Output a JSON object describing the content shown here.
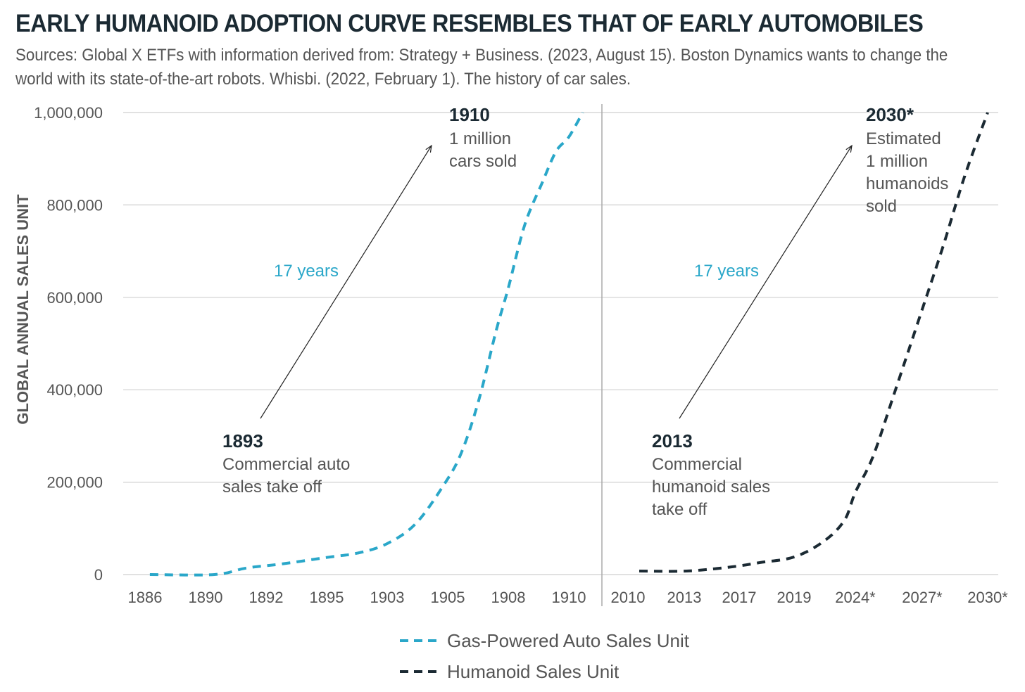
{
  "chart_data": {
    "type": "line",
    "title": "EARLY HUMANOID ADOPTION CURVE RESEMBLES THAT OF EARLY AUTOMOBILES",
    "subtitle": "Sources: Global X ETFs with information derived from: Strategy + Business. (2023, August 15). Boston Dynamics wants to change the world with its state-of-the-art robots. Whisbi. (2022, February 1). The history of car sales.",
    "ylabel": "GLOBAL ANNUAL SALES UNIT",
    "ylim": [
      0,
      1000000
    ],
    "yticks": [
      0,
      200000,
      400000,
      600000,
      800000,
      1000000
    ],
    "ytick_labels": [
      "0",
      "200,000",
      "400,000",
      "600,000",
      "800,000",
      "1,000,000"
    ],
    "grid": true,
    "legend_position": "bottom-center",
    "panels": [
      {
        "categories": [
          "1886",
          "1890",
          "1892",
          "1895",
          "1903",
          "1905",
          "1908",
          "1910"
        ],
        "series": {
          "name": "Gas-Powered Auto Sales Unit",
          "color": "#2aa7c9",
          "points": [
            [
              0.08,
              0
            ],
            [
              1.15,
              0
            ],
            [
              1.67,
              14000
            ],
            [
              2.26,
              23000
            ],
            [
              3,
              37000
            ],
            [
              3.53,
              47000
            ],
            [
              4,
              67000
            ],
            [
              4.47,
              110000
            ],
            [
              4.93,
              193000
            ],
            [
              5.22,
              262000
            ],
            [
              5.51,
              376000
            ],
            [
              5.8,
              528000
            ],
            [
              6,
              620000
            ],
            [
              6.27,
              756000
            ],
            [
              6.56,
              848000
            ],
            [
              6.79,
              916000
            ],
            [
              7,
              947000
            ],
            [
              7.23,
              1000000
            ]
          ]
        },
        "annotations": {
          "start_year": "1893",
          "start_text": [
            "Commercial auto",
            "sales take off"
          ],
          "end_year": "1910",
          "end_text": [
            "1 million",
            "cars sold"
          ],
          "span": "17 years"
        }
      },
      {
        "categories": [
          "2010",
          "2013",
          "2017",
          "2019",
          "2024*",
          "2027*",
          "2030*"
        ],
        "series": {
          "name": "Humanoid Sales Unit",
          "color": "#1b2a33",
          "points": [
            [
              0.2,
              7600
            ],
            [
              1.04,
              7600
            ],
            [
              1.87,
              16700
            ],
            [
              2.38,
              26000
            ],
            [
              3,
              38000
            ],
            [
              3.48,
              71500
            ],
            [
              3.82,
              117000
            ],
            [
              4,
              178000
            ],
            [
              4.26,
              254000
            ],
            [
              4.58,
              391000
            ],
            [
              5,
              574000
            ],
            [
              5.32,
              711000
            ],
            [
              5.65,
              863000
            ],
            [
              6,
              1000000
            ]
          ]
        },
        "annotations": {
          "start_year": "2013",
          "start_text": [
            "Commercial",
            "humanoid sales",
            "take off"
          ],
          "end_year": "2030*",
          "end_text": [
            "Estimated",
            "1 million",
            "humanoids",
            "sold"
          ],
          "span": "17 years"
        }
      }
    ]
  }
}
